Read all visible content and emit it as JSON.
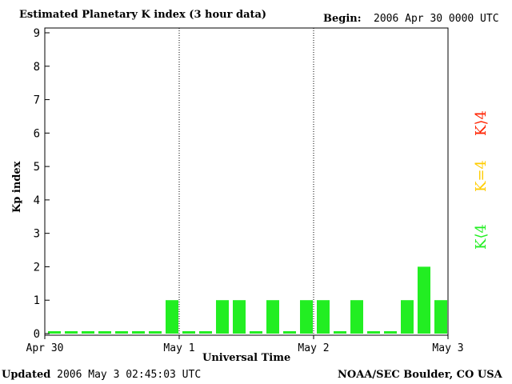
{
  "header": {
    "title": "Estimated Planetary K index (3 hour data)",
    "begin_label": "Begin:",
    "begin_value": "2006 Apr 30 0000 UTC"
  },
  "footer": {
    "updated_label": "Updated",
    "updated_value": "2006 May  3 02:45:03 UTC",
    "source": "NOAA/SEC Boulder, CO USA"
  },
  "legend": {
    "high": {
      "label": "K⟩4",
      "color": "#ff2200"
    },
    "equal": {
      "label": "K=4",
      "color": "#ffcc00"
    },
    "low": {
      "label": "K⟨4",
      "color": "#22ee22"
    }
  },
  "chart_data": {
    "type": "bar",
    "title": "Estimated Planetary K index (3 hour data)",
    "xlabel": "Universal Time",
    "ylabel": "Kp index",
    "ylim": [
      0,
      9
    ],
    "yticks": [
      0,
      1,
      2,
      3,
      4,
      5,
      6,
      7,
      8,
      9
    ],
    "xticks": [
      "Apr 30",
      "May 1",
      "May 2",
      "May 3"
    ],
    "day_dividers": [
      "May 1",
      "May 2"
    ],
    "bar_color": "#22ee22",
    "interval_hours": 3,
    "values": [
      0,
      0,
      0,
      0,
      0,
      0,
      0,
      1,
      0,
      0,
      1,
      1,
      0,
      1,
      0,
      1,
      1,
      0,
      1,
      0,
      0,
      1,
      2,
      1
    ]
  }
}
